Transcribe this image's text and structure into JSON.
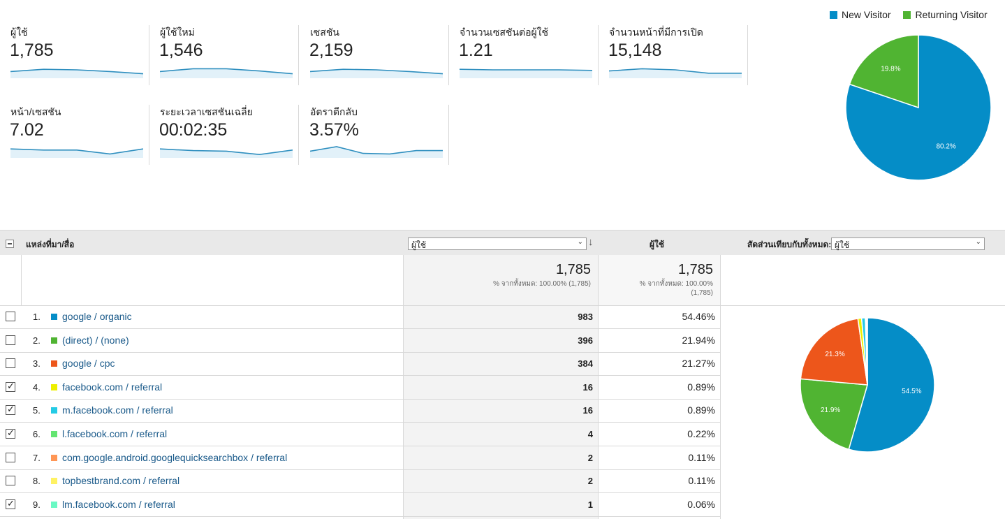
{
  "metrics": [
    {
      "label": "ผู้ใช้",
      "value": "1,785",
      "spark": [
        0.35,
        0.55,
        0.5,
        0.35,
        0.15
      ]
    },
    {
      "label": "ผู้ใช้ใหม่",
      "value": "1,546",
      "spark": [
        0.35,
        0.6,
        0.6,
        0.4,
        0.15
      ]
    },
    {
      "label": "เซสชัน",
      "value": "2,159",
      "spark": [
        0.35,
        0.55,
        0.5,
        0.35,
        0.15
      ]
    },
    {
      "label": "จำนวนเซสชันต่อผู้ใช้",
      "value": "1.21",
      "spark": [
        0.55,
        0.5,
        0.5,
        0.5,
        0.45
      ]
    },
    {
      "label": "จำนวนหน้าที่มีการเปิด",
      "value": "15,148",
      "spark": [
        0.4,
        0.6,
        0.5,
        0.2,
        0.2
      ]
    },
    {
      "label": "หน้า/เซสชัน",
      "value": "7.02",
      "spark": [
        0.55,
        0.45,
        0.45,
        0.1,
        0.55
      ]
    },
    {
      "label": "ระยะเวลาเซสชันเฉลี่ย",
      "value": "00:02:35",
      "spark": [
        0.55,
        0.4,
        0.35,
        0.05,
        0.45
      ]
    },
    {
      "label": "อัตราตีกลับ",
      "value": "3.57%",
      "spark": [
        0.35,
        0.75,
        0.15,
        0.1,
        0.4,
        0.4
      ]
    }
  ],
  "visitor_chart": {
    "type": "pie",
    "legend": [
      "New Visitor",
      "Returning Visitor"
    ],
    "values": [
      80.2,
      19.8
    ],
    "labels": [
      "80.2%",
      "19.8%"
    ],
    "colors": [
      "#058dc7",
      "#50b432"
    ]
  },
  "table": {
    "col_source": "แหล่งที่มา/สื่อ",
    "col_metric_select": "ผู้ใช้",
    "col_metric2": "ผู้ใช้",
    "col_compare_label": "สัดส่วนเทียบกับทั้งหมด:",
    "col_compare_select": "ผู้ใช้",
    "total1": "1,785",
    "total1_sub": "% จากทั้งหมด: 100.00% (1,785)",
    "total2": "1,785",
    "total2_sub_a": "% จากทั้งหมด: 100.00%",
    "total2_sub_b": "(1,785)",
    "rows": [
      {
        "idx": "1.",
        "source": "google / organic",
        "users": "983",
        "pct": "54.46%",
        "checked": false,
        "color": "#058dc7"
      },
      {
        "idx": "2.",
        "source": "(direct) / (none)",
        "users": "396",
        "pct": "21.94%",
        "checked": false,
        "color": "#50b432"
      },
      {
        "idx": "3.",
        "source": "google / cpc",
        "users": "384",
        "pct": "21.27%",
        "checked": false,
        "color": "#ed561b"
      },
      {
        "idx": "4.",
        "source": "facebook.com / referral",
        "users": "16",
        "pct": "0.89%",
        "checked": true,
        "color": "#edef00"
      },
      {
        "idx": "5.",
        "source": "m.facebook.com / referral",
        "users": "16",
        "pct": "0.89%",
        "checked": true,
        "color": "#24cbe5"
      },
      {
        "idx": "6.",
        "source": "l.facebook.com / referral",
        "users": "4",
        "pct": "0.22%",
        "checked": true,
        "color": "#64e572"
      },
      {
        "idx": "7.",
        "source": "com.google.android.googlequicksearchbox / referral",
        "users": "2",
        "pct": "0.11%",
        "checked": false,
        "color": "#ff9655"
      },
      {
        "idx": "8.",
        "source": "topbestbrand.com / referral",
        "users": "2",
        "pct": "0.11%",
        "checked": false,
        "color": "#fff263"
      },
      {
        "idx": "9.",
        "source": "lm.facebook.com / referral",
        "users": "1",
        "pct": "0.06%",
        "checked": true,
        "color": "#6af9c4"
      }
    ]
  },
  "source_chart": {
    "type": "pie",
    "values": [
      54.46,
      21.94,
      21.27,
      0.89,
      0.89,
      0.22,
      0.11,
      0.11,
      0.06
    ],
    "labels": [
      "54.5%",
      "21.9%",
      "21.3%",
      "",
      "",
      "",
      "",
      "",
      ""
    ],
    "colors": [
      "#058dc7",
      "#50b432",
      "#ed561b",
      "#edef00",
      "#24cbe5",
      "#64e572",
      "#ff9655",
      "#fff263",
      "#6af9c4"
    ]
  }
}
